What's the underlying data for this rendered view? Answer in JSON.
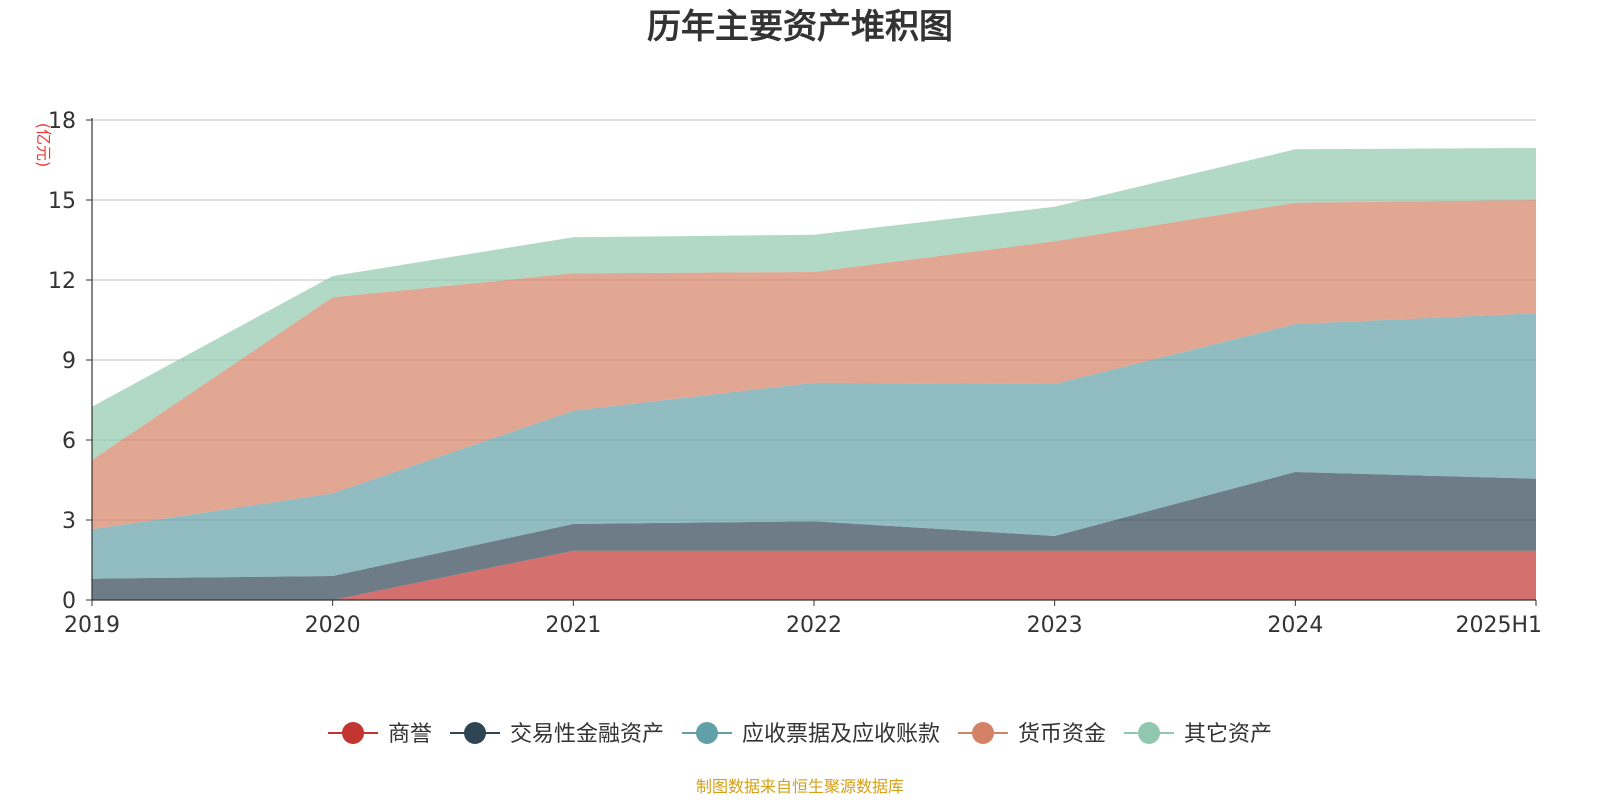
{
  "chart_data": {
    "type": "area",
    "stacked": true,
    "title": "历年主要资产堆积图",
    "ylabel": "(亿元)",
    "xlabel": "",
    "categories": [
      "2019",
      "2020",
      "2021",
      "2022",
      "2023",
      "2024",
      "2025H1"
    ],
    "ylim": [
      0,
      18
    ],
    "yticks": [
      0,
      3,
      6,
      9,
      12,
      15,
      18
    ],
    "grid": true,
    "legend_position": "bottom",
    "series": [
      {
        "name": "商誉",
        "color": "#c23531",
        "values": [
          0.0,
          0.0,
          1.85,
          1.85,
          1.85,
          1.85,
          1.85
        ]
      },
      {
        "name": "交易性金融资产",
        "color": "#2f4554",
        "values": [
          0.8,
          0.9,
          1.0,
          1.1,
          0.55,
          2.95,
          2.7
        ]
      },
      {
        "name": "应收票据及应收账款",
        "color": "#61a0a8",
        "values": [
          1.85,
          3.1,
          4.25,
          5.2,
          5.7,
          5.55,
          6.2
        ]
      },
      {
        "name": "货币资金",
        "color": "#d48265",
        "values": [
          2.6,
          7.35,
          5.15,
          4.15,
          5.35,
          4.55,
          4.25
        ]
      },
      {
        "name": "其它资产",
        "color": "#91c7ae",
        "values": [
          2.0,
          0.8,
          1.35,
          1.4,
          1.3,
          2.0,
          1.95
        ]
      }
    ],
    "source": "制图数据来自恒生聚源数据库"
  }
}
